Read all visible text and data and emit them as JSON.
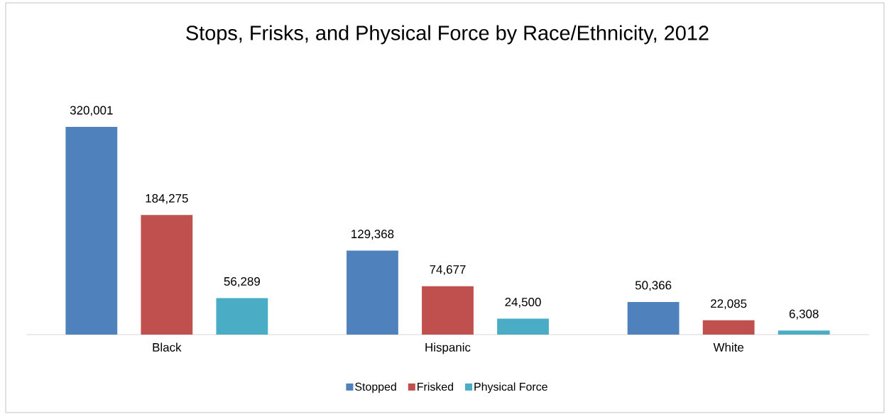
{
  "chart_data": {
    "type": "bar",
    "title": "Stops, Frisks, and Physical Force by Race/Ethnicity, 2012",
    "categories": [
      "Black",
      "Hispanic",
      "White"
    ],
    "series": [
      {
        "name": "Stopped",
        "color": "#4f81bd",
        "values": [
          320001,
          129368,
          50366
        ],
        "value_labels": [
          "320,001",
          "129,368",
          "50,366"
        ]
      },
      {
        "name": "Frisked",
        "color": "#c0504d",
        "values": [
          184275,
          74677,
          22085
        ],
        "value_labels": [
          "184,275",
          "74,677",
          "22,085"
        ]
      },
      {
        "name": "Physical Force",
        "color": "#4bacc6",
        "values": [
          56289,
          24500,
          6308
        ],
        "value_labels": [
          "56,289",
          "24,500",
          "6,308"
        ]
      }
    ],
    "legend": "bottom"
  }
}
